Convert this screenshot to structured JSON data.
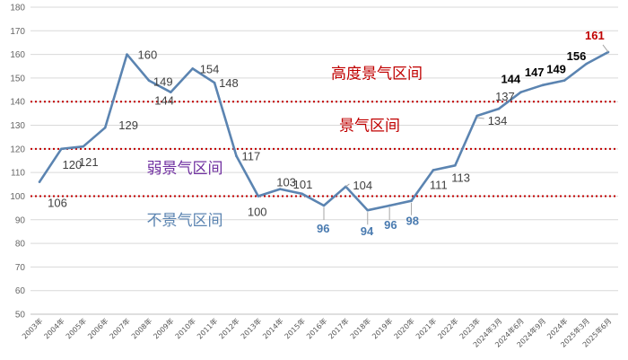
{
  "chart_data": {
    "type": "line",
    "title": "",
    "xlabel": "",
    "ylabel": "",
    "ylim": [
      50,
      180
    ],
    "yticks": [
      50,
      60,
      70,
      80,
      90,
      100,
      110,
      120,
      130,
      140,
      150,
      160,
      170,
      180
    ],
    "grid": true,
    "line_color": "#5B84B1",
    "x": [
      "2003年",
      "2004年",
      "2005年",
      "2006年",
      "2007年",
      "2008年",
      "2009年",
      "2010年",
      "2011年",
      "2012年",
      "2013年",
      "2014年",
      "2015年",
      "2016年",
      "2017年",
      "2018年",
      "2019年",
      "2020年",
      "2021年",
      "2022年",
      "2023年",
      "2024年3月",
      "2024年6月",
      "2024年9月",
      "2024年",
      "2025年3月",
      "2025年6月"
    ],
    "values": [
      106,
      120,
      121,
      129,
      160,
      149,
      144,
      154,
      148,
      117,
      100,
      103,
      101,
      96,
      104,
      94,
      96,
      98,
      111,
      113,
      134,
      137,
      144,
      147,
      149,
      156,
      161
    ],
    "data_labels": [
      {
        "index": 0,
        "text": "106",
        "color": "#404040"
      },
      {
        "index": 1,
        "text": "120",
        "color": "#404040"
      },
      {
        "index": 2,
        "text": "121",
        "color": "#404040"
      },
      {
        "index": 3,
        "text": "129",
        "color": "#404040"
      },
      {
        "index": 4,
        "text": "160",
        "color": "#404040"
      },
      {
        "index": 5,
        "text": "149",
        "color": "#404040"
      },
      {
        "index": 6,
        "text": "144",
        "color": "#404040"
      },
      {
        "index": 7,
        "text": "154",
        "color": "#404040"
      },
      {
        "index": 8,
        "text": "148",
        "color": "#404040"
      },
      {
        "index": 9,
        "text": "117",
        "color": "#404040"
      },
      {
        "index": 10,
        "text": "100",
        "color": "#404040"
      },
      {
        "index": 11,
        "text": "103",
        "color": "#404040"
      },
      {
        "index": 12,
        "text": "101",
        "color": "#404040"
      },
      {
        "index": 13,
        "text": "96",
        "color": "#4A7BB0",
        "bold": true
      },
      {
        "index": 14,
        "text": "104",
        "color": "#404040"
      },
      {
        "index": 15,
        "text": "94",
        "color": "#4A7BB0",
        "bold": true
      },
      {
        "index": 16,
        "text": "96",
        "color": "#4A7BB0",
        "bold": true
      },
      {
        "index": 17,
        "text": "98",
        "color": "#4A7BB0",
        "bold": true
      },
      {
        "index": 18,
        "text": "111",
        "color": "#404040"
      },
      {
        "index": 19,
        "text": "113",
        "color": "#404040"
      },
      {
        "index": 20,
        "text": "134",
        "color": "#404040"
      },
      {
        "index": 21,
        "text": "137",
        "color": "#404040"
      },
      {
        "index": 22,
        "text": "144",
        "color": "#000000",
        "bold": true
      },
      {
        "index": 23,
        "text": "147",
        "color": "#000000",
        "bold": true
      },
      {
        "index": 24,
        "text": "149",
        "color": "#000000",
        "bold": true
      },
      {
        "index": 25,
        "text": "156",
        "color": "#000000",
        "bold": true
      },
      {
        "index": 26,
        "text": "161",
        "color": "#C00000",
        "bold": true
      }
    ],
    "threshold_lines": [
      {
        "y": 140,
        "color": "#C00000"
      },
      {
        "y": 120,
        "color": "#C00000"
      },
      {
        "y": 100,
        "color": "#C00000"
      }
    ],
    "zones": [
      {
        "text": "高度景气区间",
        "y": 152,
        "color": "#C00000"
      },
      {
        "text": "景气区间",
        "y": 130,
        "color": "#C00000"
      },
      {
        "text": "弱景气区间",
        "y": 112,
        "color": "#7030A0"
      },
      {
        "text": "不景气区间",
        "y": 90,
        "color": "#5B84B1"
      }
    ]
  }
}
